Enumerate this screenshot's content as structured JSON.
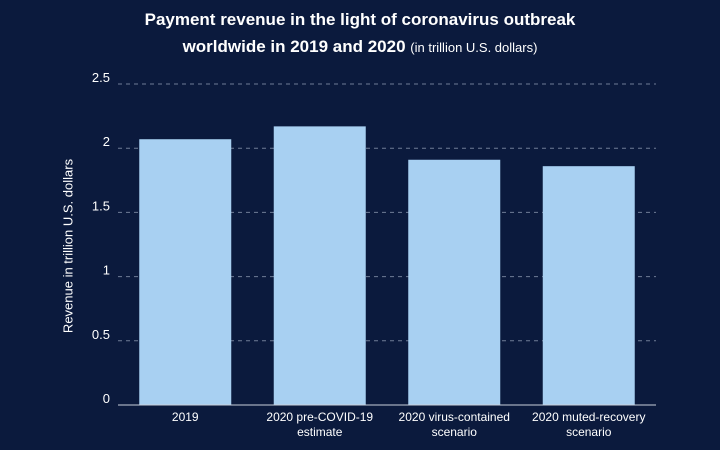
{
  "chart_data": {
    "type": "bar",
    "title": "Payment revenue in the light of coronavirus outbreak worldwide in 2019 and 2020",
    "title_line1": "Payment revenue in the light of coronavirus outbreak",
    "title_line2": "worldwide in 2019 and 2020",
    "subtitle": "(in trillion U.S. dollars)",
    "ylabel": "Revenue in trillion U.S. dollars",
    "xlabel": "",
    "ylim": [
      0,
      2.5
    ],
    "yticks": [
      "0",
      "0.5",
      "1",
      "1.5",
      "2",
      "2.5"
    ],
    "categories": [
      [
        "2019"
      ],
      [
        "2020 pre-COVID-19",
        "estimate"
      ],
      [
        "2020 virus-contained",
        "scenario"
      ],
      [
        "2020 muted-recovery",
        "scenario"
      ]
    ],
    "values": [
      2.07,
      2.17,
      1.91,
      1.86
    ],
    "grid": true,
    "bar_color": "#a8d0f2",
    "background_color": "#0b1a3d",
    "grid_color": "#6f7c96"
  }
}
